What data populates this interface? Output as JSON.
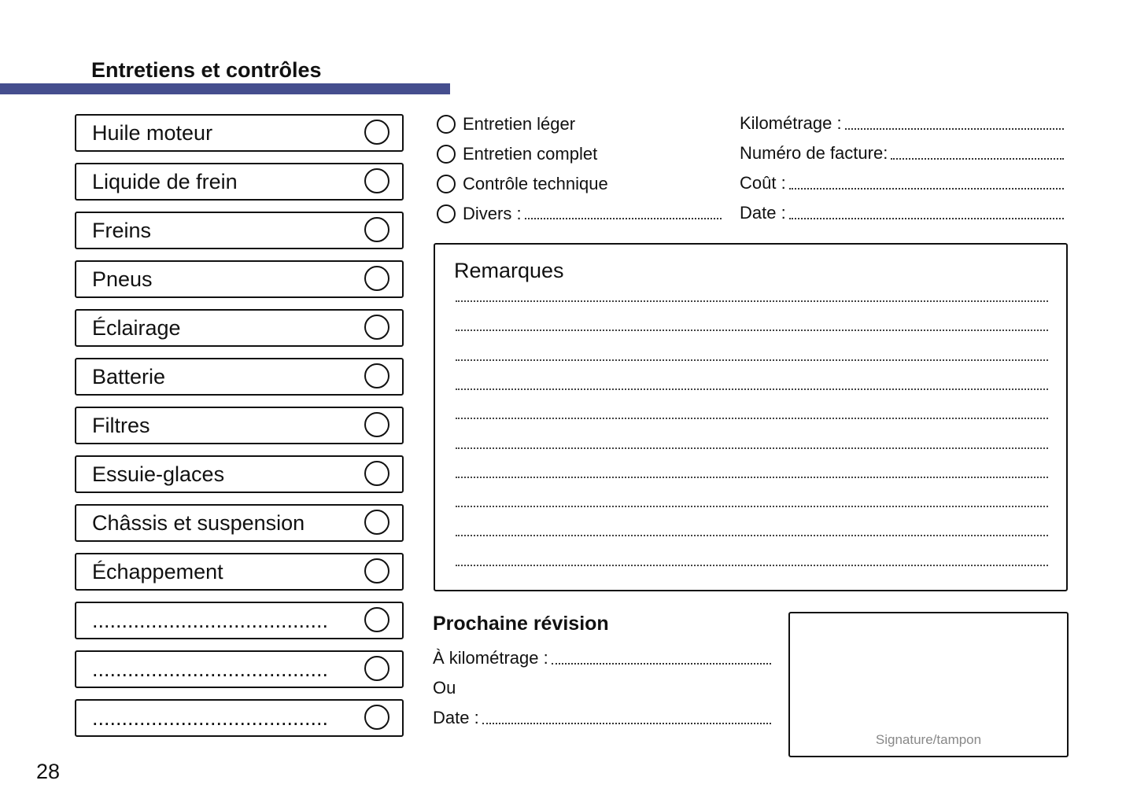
{
  "header": {
    "title": "Entretiens et contrôles",
    "accent_color": "#454e8e"
  },
  "checklist": [
    "Huile moteur",
    "Liquide de frein",
    "Freins",
    "Pneus",
    "Éclairage",
    "Batterie",
    "Filtres",
    "Essuie-glaces",
    "Châssis et suspension",
    "Échappement",
    "........................................",
    "........................................",
    "........................................"
  ],
  "service_types": [
    "Entretien léger",
    "Entretien complet",
    "Contrôle technique",
    "Divers :"
  ],
  "fields": [
    "Kilométrage :",
    "Numéro de facture:",
    "Coût :",
    "Date :"
  ],
  "remarks": {
    "title": "Remarques"
  },
  "next_service": {
    "title": "Prochaine révision",
    "mileage_label": "À kilométrage :",
    "or_label": "Ou",
    "date_label": "Date :"
  },
  "signature": {
    "label": "Signature/tampon"
  },
  "page_number": "28"
}
